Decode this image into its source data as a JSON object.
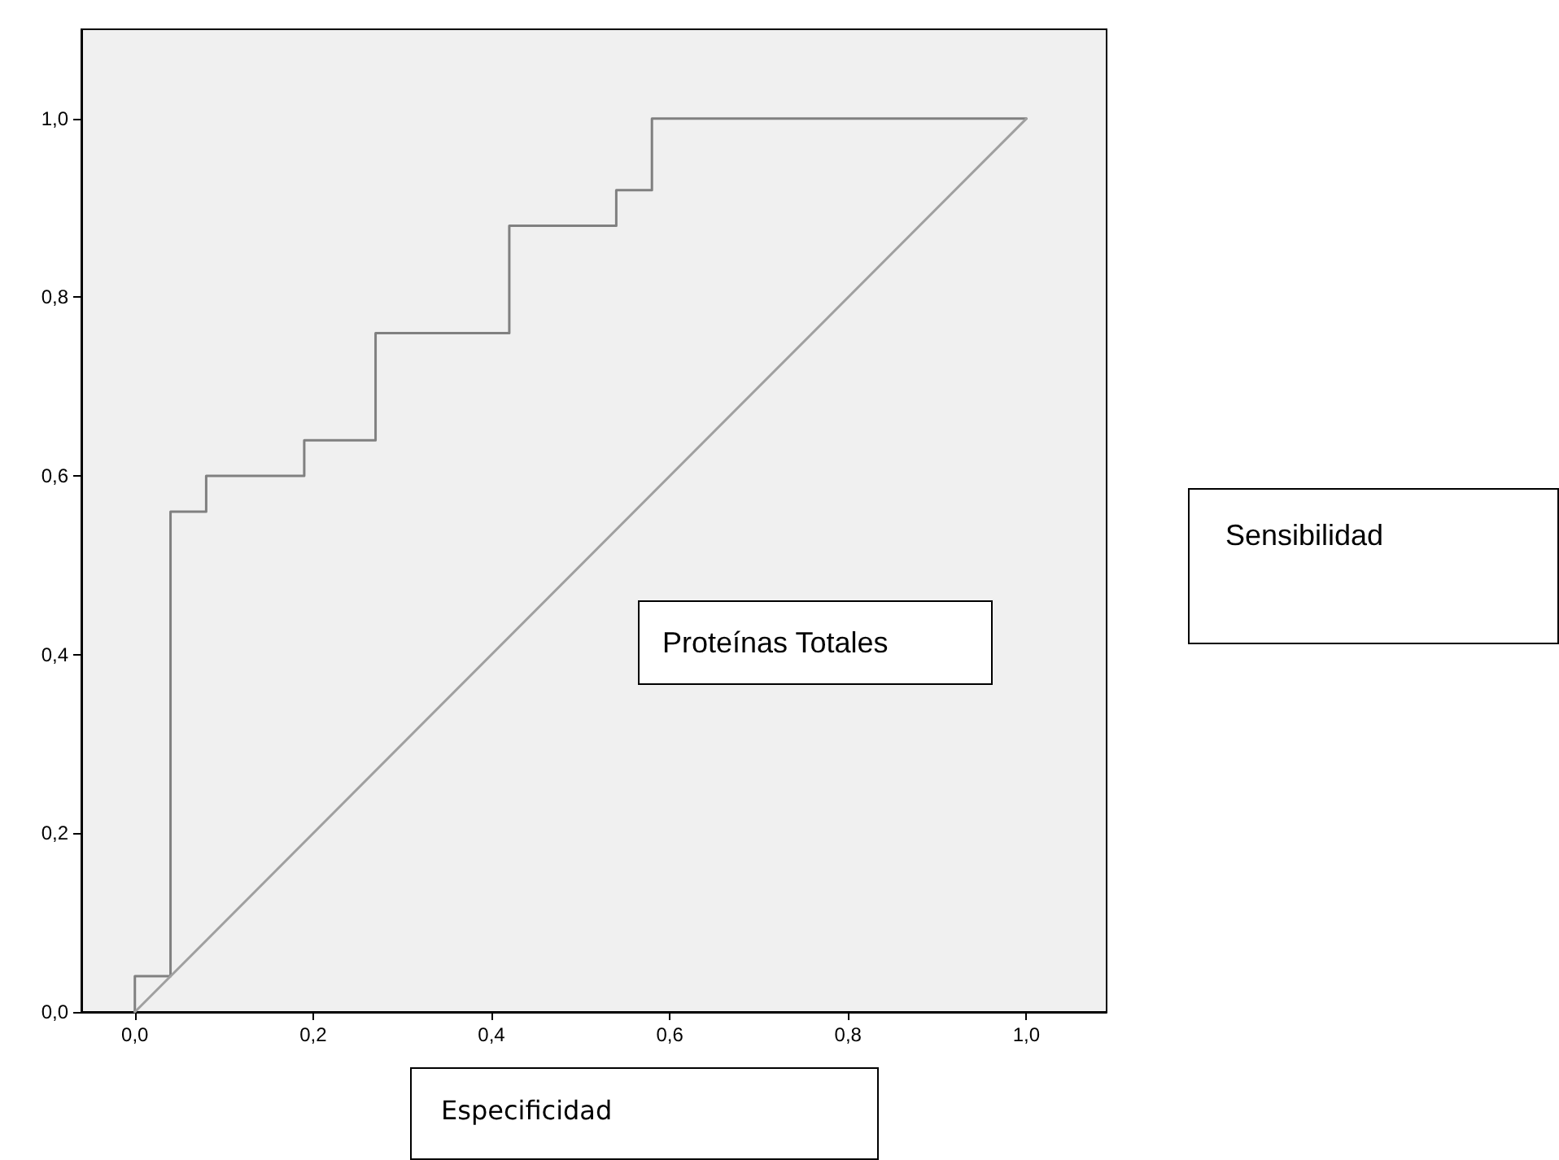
{
  "chart_data": {
    "type": "step",
    "xlabel": "Especificidad",
    "ylabel": "Sensibilidad",
    "annotations": [
      "Proteínas Totales"
    ],
    "series": [
      {
        "color": "#808080",
        "x": [
          0,
          0,
          0.04,
          0.08,
          0.19,
          0.27,
          0.42,
          0.54,
          0.58,
          1
        ],
        "values": [
          0,
          0.04,
          0.56,
          0.6,
          0.64,
          0.76,
          0.88,
          0.92,
          1,
          1
        ]
      },
      {
        "type": "line",
        "color": "#a0a0a0",
        "x": [
          0,
          1
        ],
        "values": [
          0,
          1
        ]
      }
    ],
    "xlim": [
      -0.06,
      1.09
    ],
    "ylim": [
      0,
      1.1
    ],
    "xticks": [
      {
        "value": 0,
        "label": "0,0"
      },
      {
        "value": 0.2,
        "label": "0,2"
      },
      {
        "value": 0.4,
        "label": "0,4"
      },
      {
        "value": 0.6,
        "label": "0,6"
      },
      {
        "value": 0.8,
        "label": "0,8"
      },
      {
        "value": 1,
        "label": "1,0"
      }
    ],
    "yticks": [
      {
        "value": 0,
        "label": "0,0"
      },
      {
        "value": 0.2,
        "label": "0,2"
      },
      {
        "value": 0.4,
        "label": "0,4"
      },
      {
        "value": 0.6,
        "label": "0,6"
      },
      {
        "value": 0.8,
        "label": "0,8"
      },
      {
        "value": 1,
        "label": "1,0"
      }
    ],
    "grid": false,
    "marker": "none",
    "line_style": "solid"
  }
}
